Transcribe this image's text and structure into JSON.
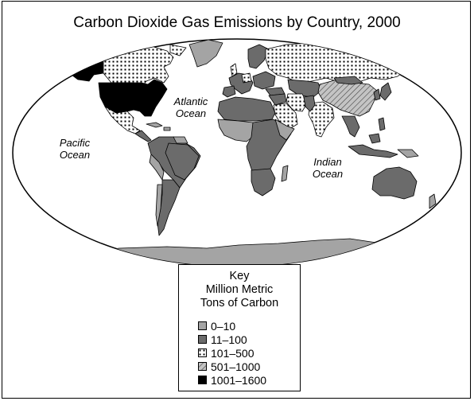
{
  "title": "Carbon Dioxide Gas Emissions by Country, 2000",
  "oceans": {
    "pacific": [
      "Pacific",
      "Ocean"
    ],
    "atlantic": [
      "Atlantic",
      "Ocean"
    ],
    "indian": [
      "Indian",
      "Ocean"
    ]
  },
  "key": {
    "heading": [
      "Key",
      "Million Metric",
      "Tons of Carbon"
    ],
    "items": [
      {
        "label": "0–10",
        "fill": "light-gray",
        "color": "#a4a4a4"
      },
      {
        "label": "11–100",
        "fill": "dark-gray",
        "color": "#6b6b6b"
      },
      {
        "label": "101–500",
        "fill": "dotted",
        "color": "#ffffff"
      },
      {
        "label": "501–1000",
        "fill": "hatched",
        "color": "#b8b8b8"
      },
      {
        "label": "1001–1600",
        "fill": "solid-black",
        "color": "#000000"
      }
    ]
  },
  "regions": [
    {
      "name": "United States",
      "category": "1001–1600"
    },
    {
      "name": "Canada",
      "category": "101–500"
    },
    {
      "name": "Greenland",
      "category": "0–10"
    },
    {
      "name": "Mexico",
      "category": "101–500"
    },
    {
      "name": "Brazil",
      "category": "11–100"
    },
    {
      "name": "Russia",
      "category": "101–500"
    },
    {
      "name": "China",
      "category": "501–1000"
    },
    {
      "name": "India",
      "category": "101–500"
    },
    {
      "name": "Saudi Arabia",
      "category": "101–500"
    },
    {
      "name": "Australia",
      "category": "11–100"
    },
    {
      "name": "Antarctica",
      "category": "0–10"
    }
  ]
}
